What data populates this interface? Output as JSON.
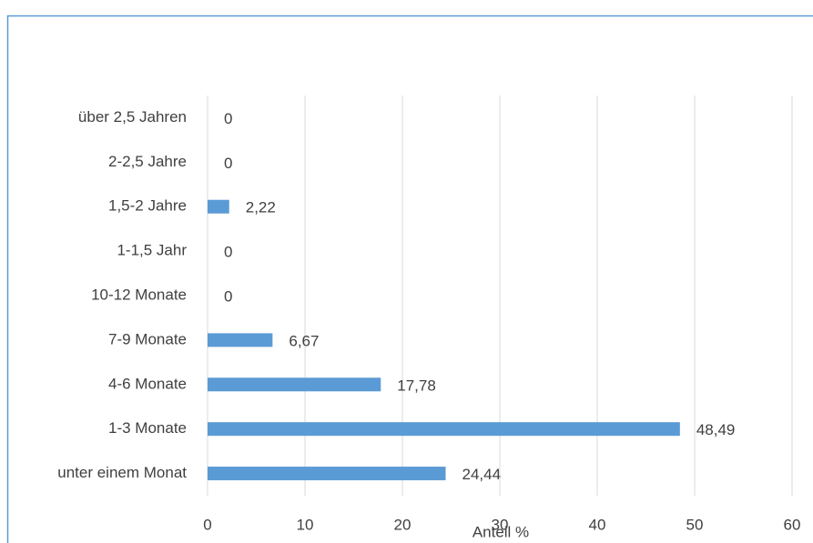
{
  "chart_data": {
    "type": "bar",
    "orientation": "horizontal",
    "x_label": "Anteil %",
    "categories": [
      "über 2,5 Jahren",
      "2-2,5 Jahre",
      "1,5-2 Jahre",
      "1-1,5 Jahr",
      "10-12 Monate",
      "7-9 Monate",
      "4-6 Monate",
      "1-3 Monate",
      "unter einem Monat"
    ],
    "values": [
      0,
      0,
      2.22,
      0,
      0,
      6.67,
      17.78,
      48.49,
      24.44
    ],
    "value_labels": [
      "0",
      "0",
      "2,22",
      "0",
      "0",
      "6,67",
      "17,78",
      "48,49",
      "24,44"
    ],
    "color": "#5b9bd5",
    "xlim": [
      0,
      60
    ],
    "xticks": [
      0,
      10,
      20,
      30,
      40,
      50,
      60
    ],
    "grid": true
  }
}
